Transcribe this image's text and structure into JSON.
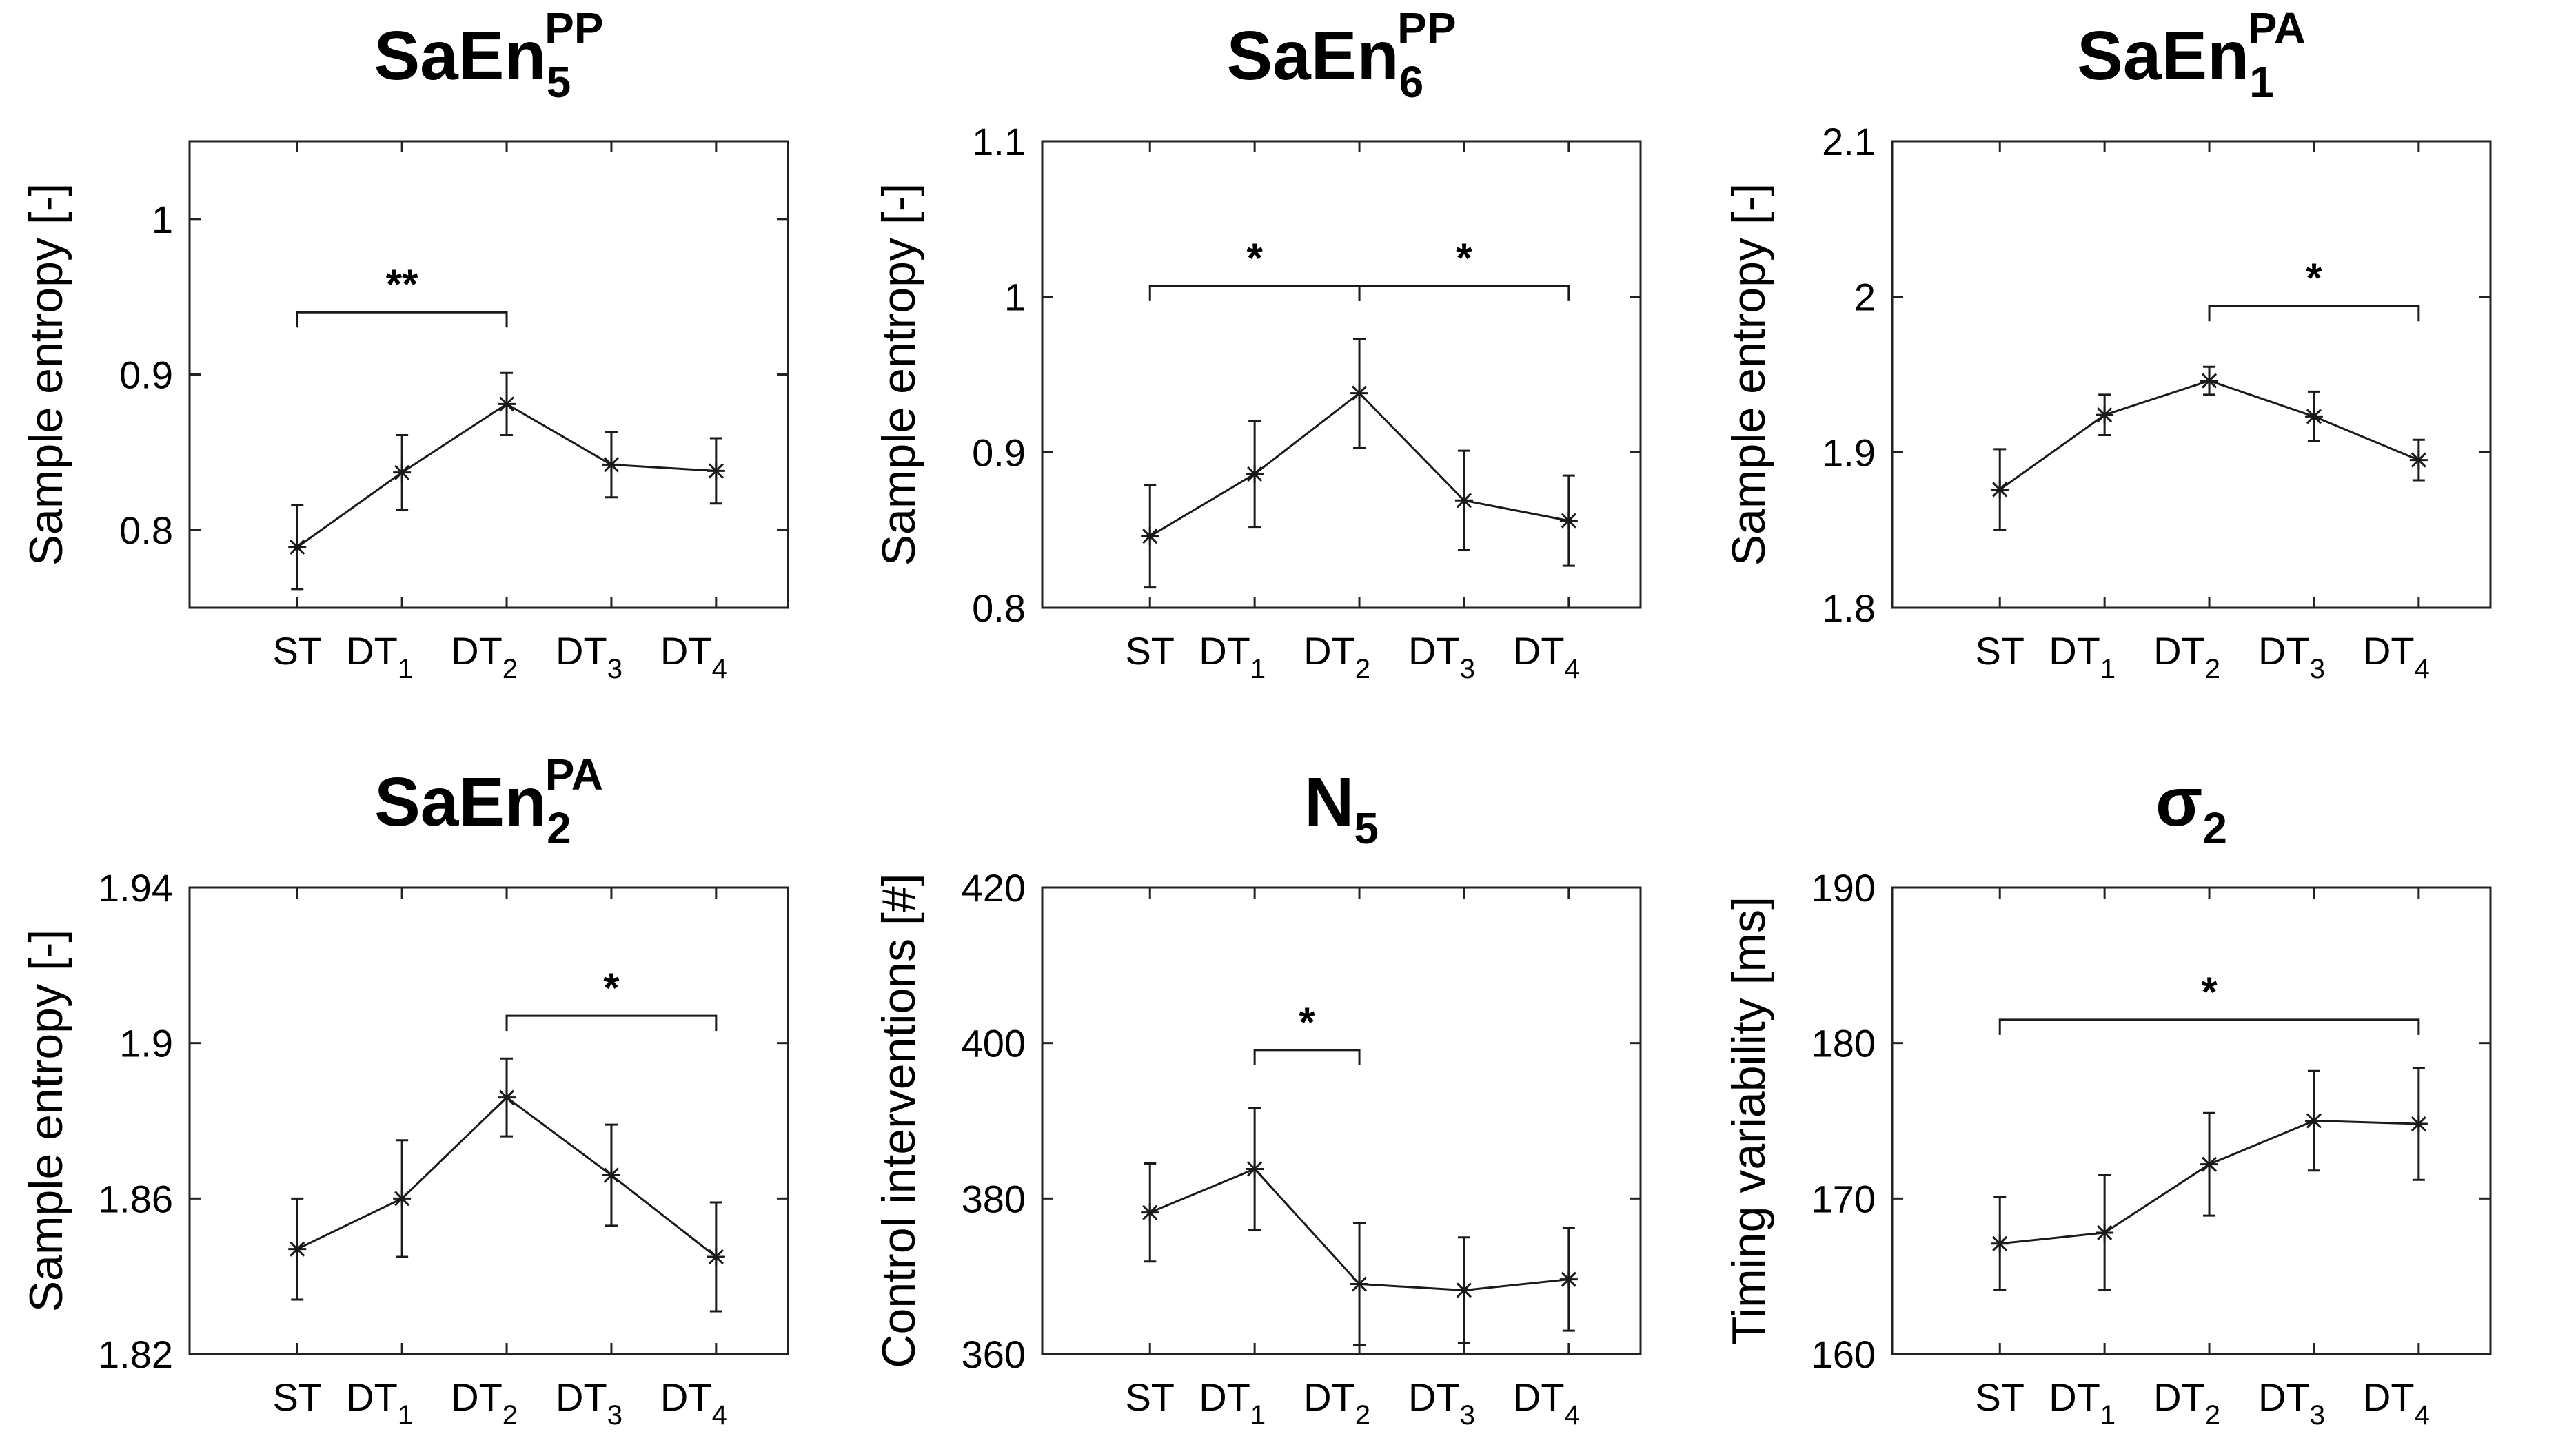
{
  "chart_data": [
    {
      "type": "line",
      "title": "SaEn",
      "title_sub": "5",
      "title_sup": "PP",
      "ylabel": "Sample entropy [-]",
      "ylim": [
        0.75,
        1.05
      ],
      "yticks": [
        0.8,
        0.9,
        1
      ],
      "ytick_labels": [
        "0.8",
        "0.9",
        "1"
      ],
      "categories": [
        "ST",
        "DT1",
        "DT2",
        "DT3",
        "DT4"
      ],
      "values": [
        0.789,
        0.837,
        0.881,
        0.842,
        0.838
      ],
      "errors": [
        0.027,
        0.024,
        0.02,
        0.021,
        0.021
      ],
      "significance": [
        {
          "from": 0,
          "to": 2,
          "level": 0.94,
          "label": "**"
        }
      ]
    },
    {
      "type": "line",
      "title": "SaEn",
      "title_sub": "6",
      "title_sup": "PP",
      "ylabel": "Sample entropy [-]",
      "ylim": [
        0.8,
        1.1
      ],
      "yticks": [
        0.8,
        0.9,
        1,
        1.1
      ],
      "ytick_labels": [
        "0.8",
        "0.9",
        "1",
        "1.1"
      ],
      "categories": [
        "ST",
        "DT1",
        "DT2",
        "DT3",
        "DT4"
      ],
      "values": [
        0.846,
        0.886,
        0.938,
        0.869,
        0.856
      ],
      "errors": [
        0.033,
        0.034,
        0.035,
        0.032,
        0.029
      ],
      "significance": [
        {
          "from": 0,
          "to": 2,
          "level": 1.007,
          "label": "*"
        },
        {
          "from": 2,
          "to": 4,
          "level": 1.007,
          "label": "*"
        }
      ]
    },
    {
      "type": "line",
      "title": "SaEn",
      "title_sub": "1",
      "title_sup": "PA",
      "ylabel": "Sample entropy [-]",
      "ylim": [
        1.8,
        2.1
      ],
      "yticks": [
        1.8,
        1.9,
        2,
        2.1
      ],
      "ytick_labels": [
        "1.8",
        "1.9",
        "2",
        "2.1"
      ],
      "categories": [
        "ST",
        "DT1",
        "DT2",
        "DT3",
        "DT4"
      ],
      "values": [
        1.876,
        1.924,
        1.946,
        1.923,
        1.895
      ],
      "errors": [
        0.026,
        0.013,
        0.009,
        0.016,
        0.013
      ],
      "significance": [
        {
          "from": 2,
          "to": 4,
          "level": 1.994,
          "label": "*"
        }
      ]
    },
    {
      "type": "line",
      "title": "SaEn",
      "title_sub": "2",
      "title_sup": "PA",
      "ylabel": "Sample entropy [-]",
      "ylim": [
        1.82,
        1.94
      ],
      "yticks": [
        1.82,
        1.86,
        1.9,
        1.94
      ],
      "ytick_labels": [
        "1.82",
        "1.86",
        "1.9",
        "1.94"
      ],
      "categories": [
        "ST",
        "DT1",
        "DT2",
        "DT3",
        "DT4"
      ],
      "values": [
        1.847,
        1.86,
        1.886,
        1.866,
        1.845
      ],
      "errors": [
        0.013,
        0.015,
        0.01,
        0.013,
        0.014
      ],
      "significance": [
        {
          "from": 2,
          "to": 4,
          "level": 1.907,
          "label": "*"
        }
      ]
    },
    {
      "type": "line",
      "title": "N",
      "title_sub": "5",
      "title_sup": "",
      "ylabel": "Control interventions [#]",
      "ylim": [
        360,
        420
      ],
      "yticks": [
        360,
        380,
        400,
        420
      ],
      "ytick_labels": [
        "360",
        "380",
        "400",
        "420"
      ],
      "categories": [
        "ST",
        "DT1",
        "DT2",
        "DT3",
        "DT4"
      ],
      "values": [
        378.2,
        383.8,
        369,
        368.2,
        369.6
      ],
      "errors": [
        6.3,
        7.8,
        7.8,
        6.8,
        6.6
      ],
      "significance": [
        {
          "from": 1,
          "to": 2,
          "level": 399.1,
          "label": "*"
        }
      ]
    },
    {
      "type": "line",
      "title": "σ",
      "title_sub": "2",
      "title_sup": "",
      "ylabel": "Timing variability [ms]",
      "ylim": [
        160,
        190
      ],
      "yticks": [
        160,
        170,
        180,
        190
      ],
      "ytick_labels": [
        "160",
        "170",
        "180",
        "190"
      ],
      "categories": [
        "ST",
        "DT1",
        "DT2",
        "DT3",
        "DT4"
      ],
      "values": [
        167.1,
        167.8,
        172.2,
        175,
        174.8
      ],
      "errors": [
        3,
        3.7,
        3.3,
        3.2,
        3.6
      ],
      "significance": [
        {
          "from": 0,
          "to": 4,
          "level": 181.5,
          "label": "*"
        }
      ]
    }
  ]
}
